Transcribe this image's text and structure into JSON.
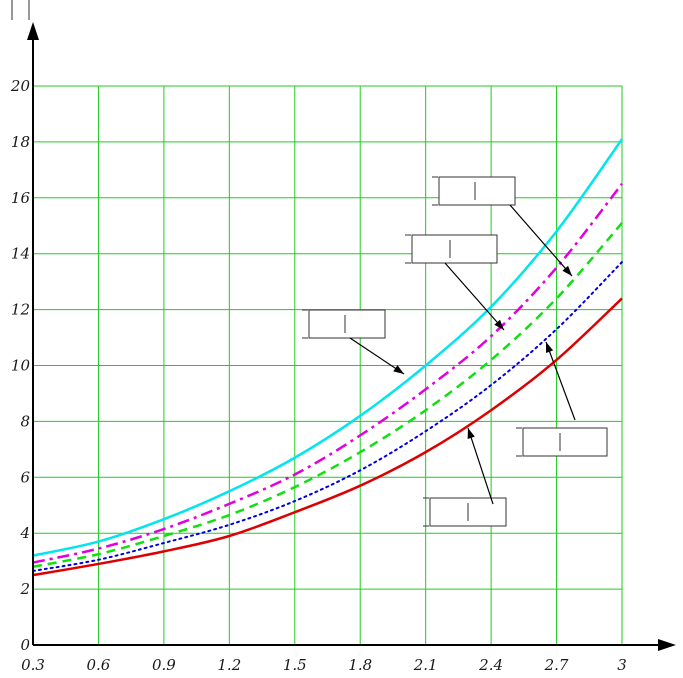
{
  "chart_data": {
    "type": "line",
    "title": "",
    "xlabel": "",
    "ylabel": "",
    "xlim": [
      0.3,
      3
    ],
    "ylim": [
      0,
      20
    ],
    "grid": true,
    "grid_color": "#22cc22",
    "x_ticks": [
      "0.3",
      "0.6",
      "0.9",
      "1.2",
      "1.5",
      "1.8",
      "2.1",
      "2.4",
      "2.7",
      "3"
    ],
    "y_ticks": [
      "0",
      "2",
      "4",
      "6",
      "8",
      "10",
      "12",
      "14",
      "16",
      "18",
      "20"
    ],
    "x": [
      0.3,
      0.6,
      0.9,
      1.2,
      1.5,
      1.8,
      2.1,
      2.4,
      2.7,
      3.0
    ],
    "series": [
      {
        "color": "#00e5ee",
        "style": "solid",
        "values": [
          3.2,
          3.7,
          4.5,
          5.5,
          6.7,
          8.2,
          10.0,
          12.1,
          14.8,
          18.1
        ]
      },
      {
        "color": "#e000e0",
        "style": "dashdot",
        "values": [
          2.95,
          3.45,
          4.15,
          5.05,
          6.1,
          7.5,
          9.15,
          11.05,
          13.5,
          16.5
        ]
      },
      {
        "color": "#10e010",
        "style": "dashed",
        "values": [
          2.8,
          3.25,
          3.9,
          4.65,
          5.65,
          6.9,
          8.4,
          10.2,
          12.4,
          15.1
        ]
      },
      {
        "color": "#0000dd",
        "style": "dotted",
        "values": [
          2.65,
          3.05,
          3.65,
          4.3,
          5.15,
          6.25,
          7.65,
          9.3,
          11.3,
          13.7
        ]
      },
      {
        "color": "#dd0000",
        "style": "solid",
        "values": [
          2.5,
          2.9,
          3.35,
          3.9,
          4.75,
          5.7,
          6.9,
          8.4,
          10.2,
          12.4
        ]
      }
    ],
    "callout_boxes": 5
  }
}
